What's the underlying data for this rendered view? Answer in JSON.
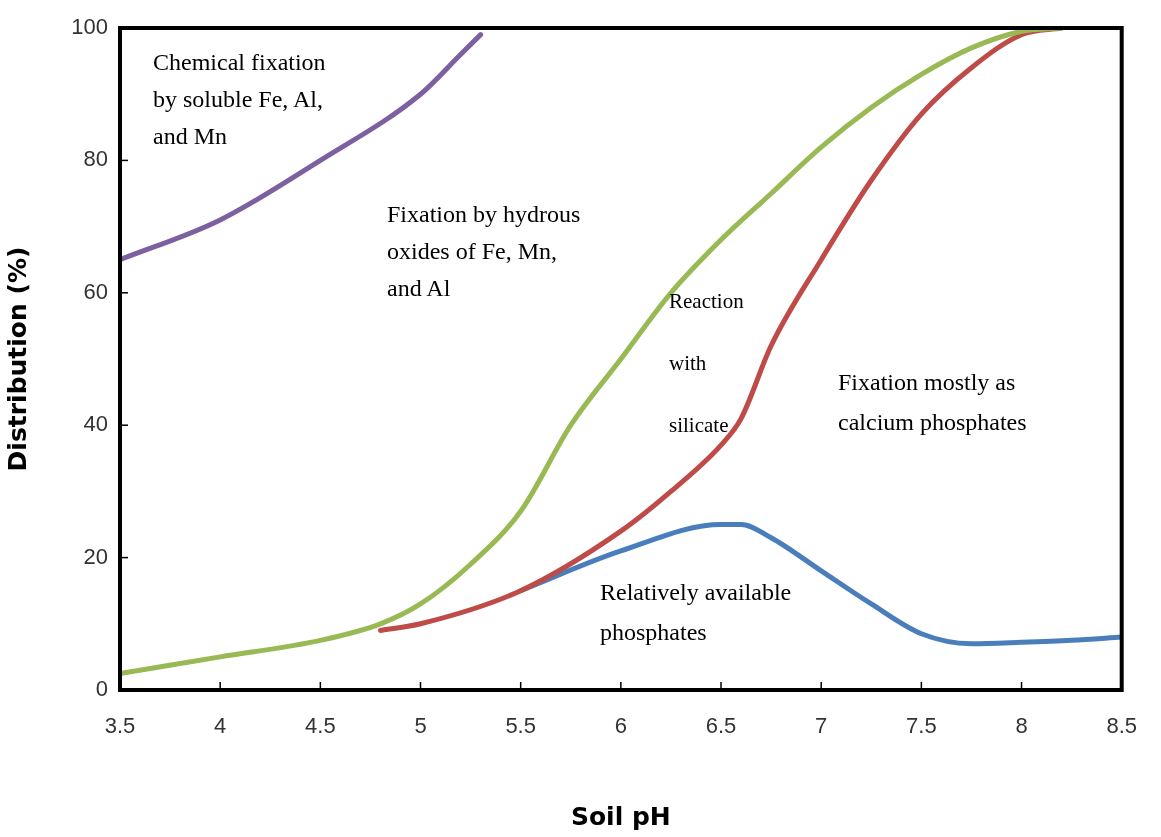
{
  "chart_data": {
    "type": "line",
    "xlabel": "Soil pH",
    "ylabel": "Distribution (%)",
    "xlim": [
      3.5,
      8.5
    ],
    "xticks": [
      3.5,
      4,
      4.5,
      5,
      5.5,
      6,
      6.5,
      7,
      7.5,
      8,
      8.5
    ],
    "ylim": [
      0,
      100
    ],
    "yticks": [
      0,
      20,
      40,
      60,
      80,
      100
    ],
    "grid": false,
    "legend": false,
    "marker": "none",
    "line_style": "solid",
    "series": [
      {
        "color": "#4a7ebb",
        "x": [
          5.5,
          6,
          6.5,
          6.6,
          6.75,
          7,
          7.25,
          7.5,
          7.75,
          8,
          8.25,
          8.5
        ],
        "values": [
          15,
          21,
          25,
          25,
          23,
          18,
          13,
          8.5,
          7,
          7.2,
          7.5,
          8
        ]
      },
      {
        "color": "#be4b48",
        "x": [
          4.8,
          5,
          5.5,
          6,
          6.25,
          6.5,
          6.6,
          6.75,
          7,
          7.25,
          7.5,
          7.75,
          8,
          8.2
        ],
        "values": [
          9,
          10,
          15,
          24,
          30,
          37,
          41,
          52,
          65,
          77,
          87,
          94,
          99,
          100
        ]
      },
      {
        "color": "#98b954",
        "x": [
          3.5,
          4,
          4.5,
          4.8,
          5,
          5.25,
          5.5,
          5.75,
          6,
          6.25,
          6.5,
          6.75,
          7,
          7.25,
          7.5,
          7.75,
          8,
          8.2
        ],
        "values": [
          2.5,
          5,
          7.5,
          10,
          13,
          19,
          27,
          40,
          50,
          60,
          68,
          75,
          82,
          88,
          93,
          97,
          99.5,
          100
        ]
      },
      {
        "color": "#7d60a0",
        "x": [
          3.5,
          4,
          4.5,
          5,
          5.2,
          5.3
        ],
        "values": [
          65,
          71,
          80,
          90,
          96,
          99
        ]
      }
    ],
    "annotations": [
      "Chemical fixation\nby soluble Fe, Al,\nand Mn",
      "Fixation by hydrous\noxides of Fe, Mn,\nand Al",
      "Reaction\nwith\nsilicate",
      "Fixation mostly as\ncalcium phosphates",
      "Relatively available\nphosphates"
    ]
  }
}
